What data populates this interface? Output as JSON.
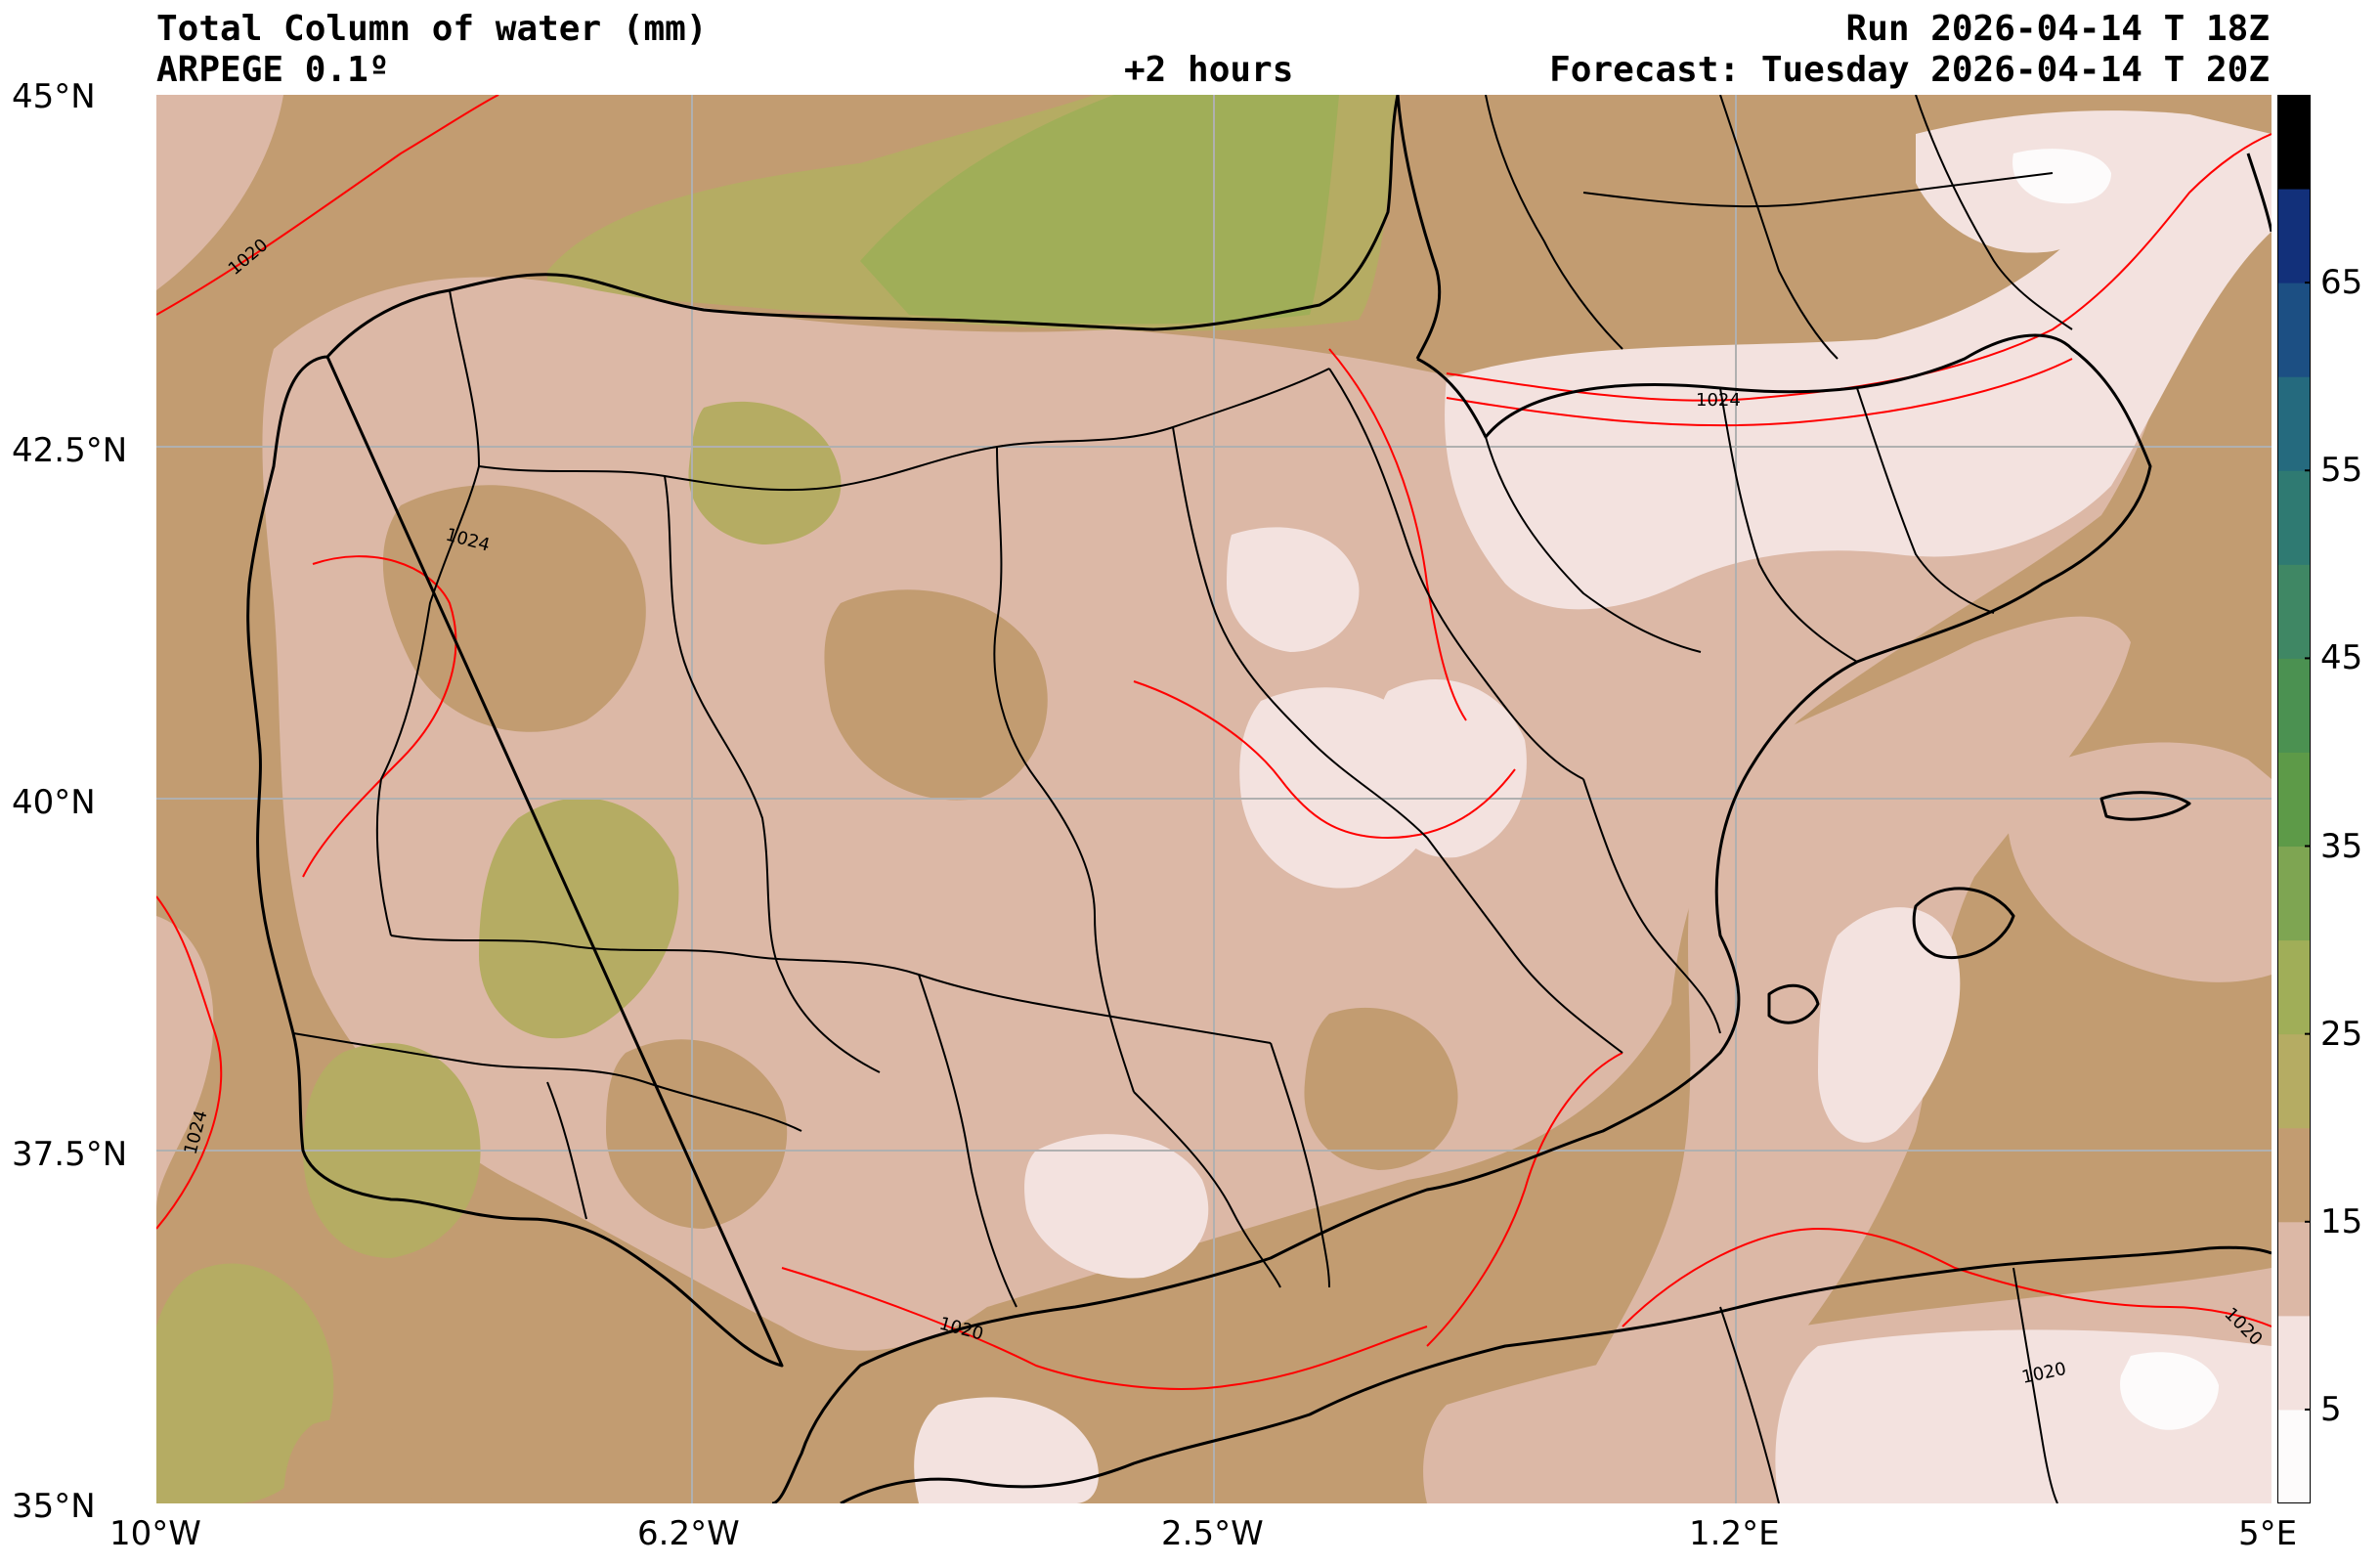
{
  "header": {
    "title": "Total Column of water (mm)",
    "model": "ARPEGE 0.1º",
    "lead": "+2 hours",
    "run": "Run 2026-04-14 T 18Z",
    "forecast": "Forecast: Tuesday 2026-04-14 T 20Z"
  },
  "axes": {
    "lat_ticks": [
      "45°N",
      "42.5°N",
      "40°N",
      "37.5°N",
      "35°N"
    ],
    "lon_ticks": [
      "10°W",
      "6.2°W",
      "2.5°W",
      "1.2°E",
      "5°E"
    ],
    "lat_range": [
      35,
      45
    ],
    "lon_range": [
      -10,
      5
    ]
  },
  "colorbar": {
    "levels": [
      0,
      5,
      10,
      15,
      20,
      25,
      30,
      35,
      40,
      45,
      50,
      55,
      60,
      65,
      70
    ],
    "labels": [
      "5",
      "15",
      "25",
      "35",
      "45",
      "55",
      "65"
    ],
    "colors": [
      "#fdfbfb",
      "#f3e2df",
      "#dcb8a6",
      "#c29c71",
      "#b5ac63",
      "#a0ae58",
      "#7ea552",
      "#5d9a48",
      "#4b9151",
      "#3f8764",
      "#2f7a72",
      "#256a7e",
      "#1c4f83",
      "#12307a",
      "#000000"
    ]
  },
  "isobars": {
    "color": "#ff0000",
    "labels": [
      "1020",
      "1024",
      "1024",
      "1024",
      "1020",
      "1020",
      "1020"
    ]
  },
  "map_colors": {
    "sea": "#c29c71",
    "land_light": "#dcb8a6",
    "very_light": "#f3e2df",
    "greenish": "#b5ac63",
    "green": "#a0ae58",
    "coast": "#000000",
    "grid": "#b0b0b0"
  }
}
